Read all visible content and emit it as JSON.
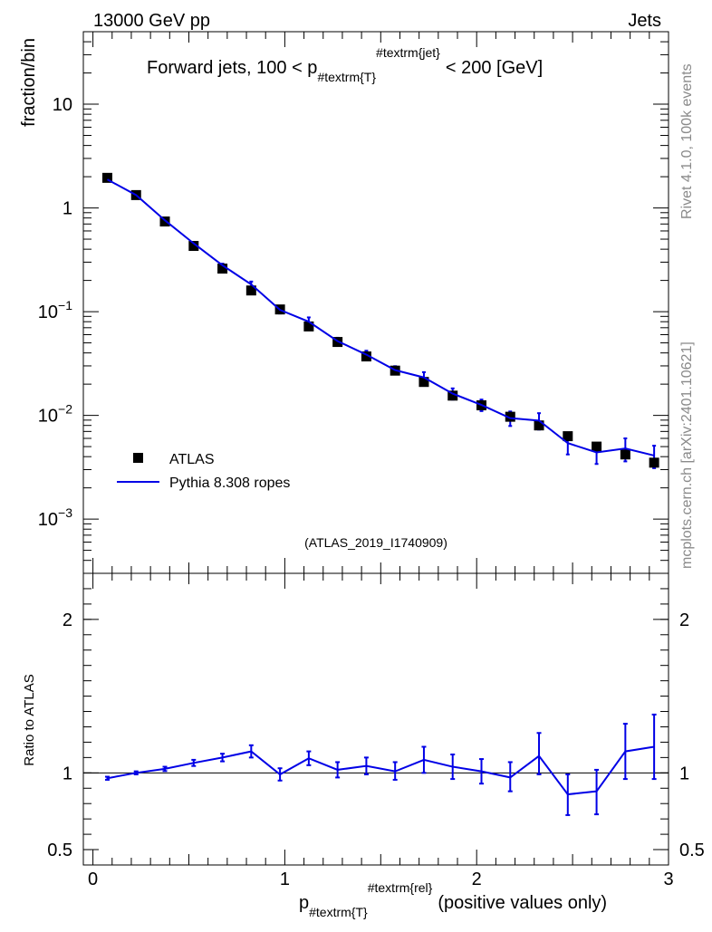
{
  "header": {
    "left": "13000 GeV pp",
    "right": "Jets"
  },
  "side_labels": {
    "top": "Rivet 4.1.0,  100k events",
    "bottom": "mcplots.cern.ch [arXiv:2401.10621]"
  },
  "colors": {
    "data": "#000000",
    "mc": "#0000e6",
    "watermark": "#999999",
    "side_text": "#8a8a8a"
  },
  "chart_data": [
    {
      "type": "scatter",
      "panel": "main",
      "title": "Forward jets, 100 < p_{#textrm{T}}^{#textrm{jet}} < 200 [GeV]",
      "title_parts": {
        "before": "Forward jets, 100 < p",
        "sub": "#textrm{T}",
        "sup": "#textrm{jet}",
        "after": "< 200 [GeV]"
      },
      "ylabel": "fraction/bin",
      "yscale": "log",
      "ylim": [
        0.0003,
        50
      ],
      "xlim": [
        -0.05,
        3.0
      ],
      "x_ticks": [
        0,
        1,
        2,
        3
      ],
      "y_ticks": [
        {
          "value": 10,
          "base": "10",
          "exp": ""
        },
        {
          "value": 1,
          "base": "1",
          "exp": ""
        },
        {
          "value": 0.1,
          "base": "10",
          "exp": "−1"
        },
        {
          "value": 0.01,
          "base": "10",
          "exp": "−2"
        },
        {
          "value": 0.001,
          "base": "10",
          "exp": "−3"
        }
      ],
      "watermark": "(ATLAS_2019_I1740909)",
      "legend": {
        "position": "bottom-left",
        "entries": [
          "ATLAS",
          "Pythia 8.308 ropes"
        ]
      },
      "x": [
        0.075,
        0.225,
        0.375,
        0.525,
        0.675,
        0.825,
        0.975,
        1.125,
        1.275,
        1.425,
        1.575,
        1.725,
        1.875,
        2.025,
        2.175,
        2.325,
        2.475,
        2.625,
        2.775,
        2.925
      ],
      "series": [
        {
          "name": "ATLAS",
          "style": "markers",
          "values": [
            1.95,
            1.33,
            0.74,
            0.43,
            0.26,
            0.16,
            0.105,
            0.072,
            0.051,
            0.037,
            0.027,
            0.021,
            0.0155,
            0.0125,
            0.0097,
            0.008,
            0.0063,
            0.005,
            0.0042,
            0.0035
          ]
        },
        {
          "name": "Pythia 8.308 ropes",
          "style": "line",
          "values": [
            1.88,
            1.33,
            0.76,
            0.455,
            0.28,
            0.183,
            0.104,
            0.08,
            0.052,
            0.0385,
            0.0273,
            0.0232,
            0.0162,
            0.0126,
            0.0094,
            0.0089,
            0.0054,
            0.0044,
            0.0048,
            0.0041
          ],
          "err_low": [
            1.85,
            1.31,
            0.75,
            0.445,
            0.27,
            0.172,
            0.096,
            0.072,
            0.048,
            0.0352,
            0.0248,
            0.0203,
            0.0142,
            0.011,
            0.0079,
            0.0073,
            0.0042,
            0.0034,
            0.0036,
            0.0031
          ],
          "err_high": [
            1.91,
            1.35,
            0.77,
            0.465,
            0.29,
            0.195,
            0.112,
            0.088,
            0.056,
            0.042,
            0.0298,
            0.0261,
            0.0182,
            0.0142,
            0.0109,
            0.0105,
            0.0066,
            0.0054,
            0.006,
            0.0051
          ]
        }
      ]
    },
    {
      "type": "line",
      "panel": "ratio",
      "ylabel": "Ratio to ATLAS",
      "xlabel": "p_{#textrm{T}}^{#textrm{rel}} (positive values only)",
      "xlabel_parts": {
        "base": "p",
        "sub": "#textrm{T}",
        "sup": "#textrm{rel}",
        "after": "(positive values only)"
      },
      "ylim": [
        0.4,
        2.3
      ],
      "xlim": [
        -0.05,
        3.0
      ],
      "x_ticks": [
        0,
        1,
        2,
        3
      ],
      "y_ticks": [
        0.5,
        1,
        2
      ],
      "reference_line": 1,
      "x": [
        0.075,
        0.225,
        0.375,
        0.525,
        0.675,
        0.825,
        0.975,
        1.125,
        1.275,
        1.425,
        1.575,
        1.725,
        1.875,
        2.025,
        2.175,
        2.325,
        2.475,
        2.625,
        2.775,
        2.925
      ],
      "series": [
        {
          "name": "Pythia 8.308 ropes",
          "values": [
            0.965,
            1.0,
            1.026,
            1.065,
            1.1,
            1.14,
            0.99,
            1.095,
            1.02,
            1.045,
            1.01,
            1.085,
            1.04,
            1.01,
            0.97,
            1.11,
            0.86,
            0.88,
            1.14,
            1.17
          ],
          "err_low": [
            0.955,
            0.99,
            1.012,
            1.045,
            1.075,
            1.1,
            0.95,
            1.05,
            0.97,
            0.99,
            0.955,
            1.0,
            0.96,
            0.93,
            0.88,
            0.99,
            0.725,
            0.73,
            0.96,
            0.96
          ],
          "err_high": [
            0.975,
            1.01,
            1.04,
            1.085,
            1.125,
            1.18,
            1.03,
            1.14,
            1.07,
            1.1,
            1.07,
            1.17,
            1.12,
            1.09,
            1.07,
            1.26,
            0.99,
            1.02,
            1.32,
            1.38
          ]
        }
      ]
    }
  ]
}
